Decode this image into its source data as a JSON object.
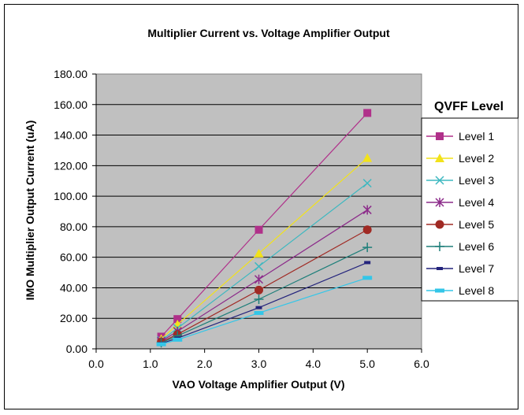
{
  "chart_data": {
    "type": "line",
    "title": "Multiplier Current vs. Voltage Amplifier Output",
    "xlabel": "VAO Voltage Amplifier Output (V)",
    "ylabel": "IMO Multiplier Output Current (uA)",
    "xlim": [
      0,
      6
    ],
    "ylim": [
      0,
      180
    ],
    "x_ticks": [
      "0.0",
      "1.0",
      "2.0",
      "3.0",
      "4.0",
      "5.0",
      "6.0"
    ],
    "y_ticks": [
      "0.00",
      "20.00",
      "40.00",
      "60.00",
      "80.00",
      "100.00",
      "120.00",
      "140.00",
      "160.00",
      "180.00"
    ],
    "grid": "horizontal",
    "plot_background": "#c0c0c0",
    "legend_title": "QVFF Level",
    "legend_position": "right",
    "x": [
      1.2,
      1.5,
      3.0,
      5.0
    ],
    "series": [
      {
        "name": "Level 1",
        "color": "#b0308a",
        "marker": "square",
        "values": [
          8.0,
          19.5,
          78.0,
          154.5
        ]
      },
      {
        "name": "Level 2",
        "color": "#f2e21a",
        "marker": "triangle",
        "values": [
          6.5,
          16.0,
          62.5,
          125.0
        ]
      },
      {
        "name": "Level 3",
        "color": "#3db8c0",
        "marker": "x",
        "values": [
          5.5,
          13.5,
          54.0,
          108.5
        ]
      },
      {
        "name": "Level 4",
        "color": "#8c2b8a",
        "marker": "star",
        "values": [
          5.0,
          11.5,
          45.5,
          91.0
        ]
      },
      {
        "name": "Level 5",
        "color": "#a02a24",
        "marker": "circle",
        "values": [
          4.5,
          9.5,
          38.5,
          78.0
        ]
      },
      {
        "name": "Level 6",
        "color": "#1e7f7a",
        "marker": "plus",
        "values": [
          4.0,
          8.5,
          32.5,
          66.5
        ]
      },
      {
        "name": "Level 7",
        "color": "#23237c",
        "marker": "dash",
        "values": [
          3.5,
          7.0,
          27.0,
          56.5
        ]
      },
      {
        "name": "Level 8",
        "color": "#33c6e8",
        "marker": "bar",
        "values": [
          3.0,
          6.0,
          23.5,
          46.5
        ]
      }
    ]
  }
}
